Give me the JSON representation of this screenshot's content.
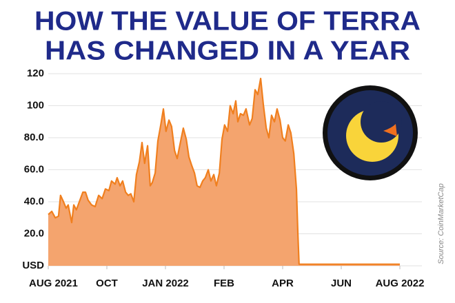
{
  "chart_data": {
    "type": "area",
    "title": [
      "HOW THE VALUE OF TERRA",
      "HAS CHANGED IN A YEAR"
    ],
    "source": "Source: CoinMarketCap",
    "color": "#f4a46e",
    "line_color": "#f07f1e",
    "grid": true,
    "xlim": [
      0,
      12
    ],
    "xticks": [
      {
        "value": 0,
        "label": "AUG 2021"
      },
      {
        "value": 2,
        "label": "OCT"
      },
      {
        "value": 4,
        "label": "JAN 2022"
      },
      {
        "value": 6,
        "label": "FEB"
      },
      {
        "value": 8,
        "label": "APR"
      },
      {
        "value": 10,
        "label": "JUN"
      },
      {
        "value": 12,
        "label": "AUG 2022"
      }
    ],
    "ylim": [
      0,
      120
    ],
    "yticks": [
      {
        "value": 0,
        "label": "USD"
      },
      {
        "value": 20,
        "label": "20.0"
      },
      {
        "value": 40,
        "label": "40.0"
      },
      {
        "value": 60,
        "label": "60.0"
      },
      {
        "value": 80,
        "label": "80.0"
      },
      100,
      120
    ],
    "x": [
      0,
      0.12,
      0.24,
      0.35,
      0.42,
      0.52,
      0.61,
      0.68,
      0.8,
      0.87,
      0.96,
      1.08,
      1.18,
      1.27,
      1.36,
      1.48,
      1.6,
      1.72,
      1.84,
      1.95,
      2.07,
      2.16,
      2.28,
      2.35,
      2.45,
      2.54,
      2.64,
      2.73,
      2.82,
      2.92,
      3.01,
      3.11,
      3.2,
      3.29,
      3.39,
      3.48,
      3.55,
      3.65,
      3.74,
      3.84,
      3.93,
      4.02,
      4.12,
      4.21,
      4.31,
      4.4,
      4.52,
      4.61,
      4.71,
      4.8,
      4.89,
      4.99,
      5.08,
      5.18,
      5.27,
      5.36,
      5.46,
      5.55,
      5.65,
      5.74,
      5.84,
      5.93,
      6.02,
      6.12,
      6.21,
      6.31,
      6.4,
      6.47,
      6.56,
      6.66,
      6.75,
      6.87,
      6.96,
      7.06,
      7.15,
      7.25,
      7.34,
      7.44,
      7.53,
      7.62,
      7.72,
      7.81,
      7.91,
      8.0,
      8.09,
      8.19,
      8.28,
      8.38,
      8.42,
      8.47,
      8.52,
      8.56,
      12
    ],
    "values": [
      32,
      34,
      30,
      31,
      44,
      40,
      36,
      38,
      27,
      38,
      35,
      41,
      46,
      46,
      41,
      38,
      37,
      44,
      42,
      48,
      47,
      53,
      51,
      55,
      50,
      53,
      46,
      44,
      45,
      40,
      57,
      65,
      77,
      64,
      75,
      50,
      52,
      58,
      78,
      88,
      98,
      84,
      91,
      87,
      72,
      67,
      78,
      86,
      79,
      68,
      63,
      58,
      50,
      49,
      53,
      55,
      60,
      53,
      57,
      50,
      58,
      79,
      88,
      84,
      100,
      95,
      103,
      90,
      95,
      94,
      98,
      88,
      92,
      110,
      107,
      117,
      101,
      86,
      80,
      94,
      90,
      98,
      91,
      80,
      78,
      88,
      83,
      70,
      60,
      48,
      20,
      1,
      1
    ]
  }
}
